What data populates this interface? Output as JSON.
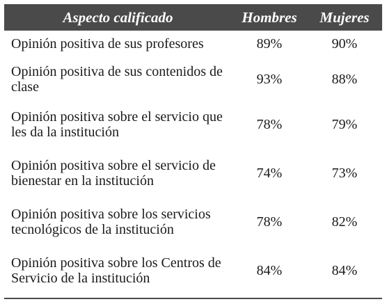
{
  "table": {
    "headers": {
      "aspect": "Aspecto calificado",
      "men": "Hombres",
      "women": "Mujeres"
    },
    "rows": [
      {
        "aspect": "Opinión positiva de sus profesores",
        "men": "89%",
        "women": "90%"
      },
      {
        "aspect": "Opinión positiva de sus contenidos de clase",
        "men": "93%",
        "women": "88%"
      },
      {
        "aspect": "Opinión positiva sobre el servicio que les da la institución",
        "men": "78%",
        "women": "79%"
      },
      {
        "aspect": "Opinión positiva sobre el servicio de bienestar en la institución",
        "men": "74%",
        "women": "73%"
      },
      {
        "aspect": "Opinión positiva sobre los servicios tecnológicos de la institución",
        "men": "78%",
        "women": "82%"
      },
      {
        "aspect": "Opinión positiva sobre los Centros de Servicio de la institución",
        "men": "84%",
        "women": "84%"
      }
    ]
  }
}
